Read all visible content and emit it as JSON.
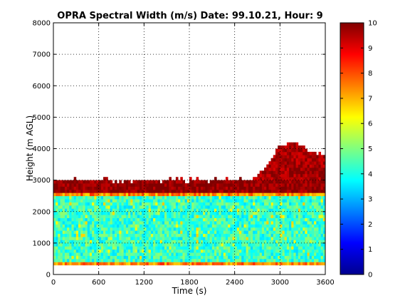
{
  "chart_data": {
    "type": "heatmap",
    "title": "OPRA Spectral Width (m/s)  Date: 99.10.21, Hour: 9",
    "xlabel": "Time (s)",
    "ylabel": "Height (m AGL)",
    "xlim": [
      0,
      3600
    ],
    "ylim": [
      0,
      8000
    ],
    "x_ticks": [
      "0",
      "600",
      "1200",
      "1800",
      "2400",
      "3000",
      "3600"
    ],
    "y_ticks": [
      "0",
      "1000",
      "2000",
      "3000",
      "4000",
      "5000",
      "6000",
      "7000",
      "8000"
    ],
    "grid": true,
    "colorbar": {
      "colormap": "jet",
      "range": [
        0,
        10
      ],
      "ticks": [
        "0",
        "1",
        "2",
        "3",
        "4",
        "5",
        "6",
        "7",
        "8",
        "9",
        "10"
      ]
    },
    "data_description": {
      "time_step_s": 30,
      "height_step_m": 100,
      "layers": [
        {
          "from_m": 300,
          "to_m": 450,
          "typical_value": 7.5
        },
        {
          "from_m": 450,
          "to_m": 2500,
          "typical_value": 4.3
        },
        {
          "from_m": 2500,
          "to_m": 2600,
          "typical_value": 7.5
        },
        {
          "from_m": 2600,
          "to_m": 3000,
          "typical_value": 9.8
        }
      ],
      "top_growth": [
        {
          "time_s": 0,
          "top_m": 3000
        },
        {
          "time_s": 2600,
          "top_m": 3000
        },
        {
          "time_s": 2800,
          "top_m": 3400
        },
        {
          "time_s": 3000,
          "top_m": 4100
        },
        {
          "time_s": 3200,
          "top_m": 4200
        },
        {
          "time_s": 3400,
          "top_m": 3900
        },
        {
          "time_s": 3600,
          "top_m": 3800
        }
      ]
    }
  }
}
